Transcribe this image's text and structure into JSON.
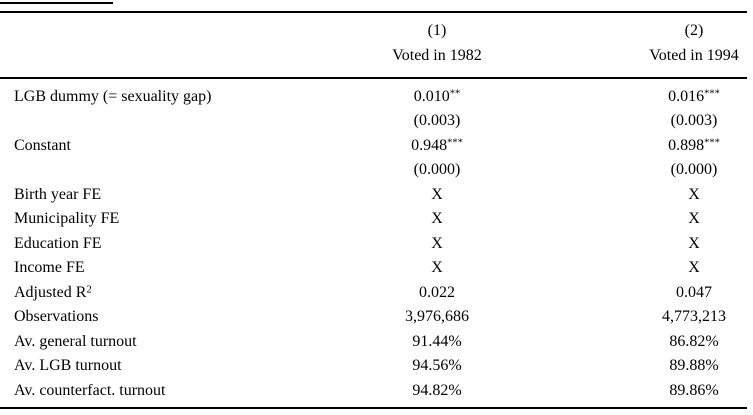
{
  "table": {
    "kind": "regression-results-table",
    "text_color": "#000000",
    "background_color": "#ffffff",
    "header": {
      "col1_num": "(1)",
      "col1_title": "Voted in 1982",
      "col2_num": "(2)",
      "col2_title": "Voted in 1994"
    },
    "rows": [
      {
        "label": "LGB dummy (= sexuality gap)",
        "c1": "0.010",
        "c1_sup": "**",
        "c2": "0.016",
        "c2_sup": "***"
      },
      {
        "label": "",
        "c1": "(0.003)",
        "c2": "(0.003)"
      },
      {
        "label": "Constant",
        "c1": "0.948",
        "c1_sup": "***",
        "c2": "0.898",
        "c2_sup": "***"
      },
      {
        "label": "",
        "c1": "(0.000)",
        "c2": "(0.000)"
      },
      {
        "label": "Birth year FE",
        "c1": "X",
        "c2": "X"
      },
      {
        "label": "Municipality FE",
        "c1": "X",
        "c2": "X"
      },
      {
        "label": "Education FE",
        "c1": "X",
        "c2": "X"
      },
      {
        "label": "Income FE",
        "c1": "X",
        "c2": "X"
      },
      {
        "label": "Adjusted R",
        "label_sup": "2",
        "c1": "0.022",
        "c2": "0.047"
      },
      {
        "label": "Observations",
        "c1": "3,976,686",
        "c2": "4,773,213"
      },
      {
        "label": "Av. general turnout",
        "c1": "91.44%",
        "c2": "86.82%"
      },
      {
        "label": "Av. LGB turnout",
        "c1": "94.56%",
        "c2": "89.88%"
      },
      {
        "label": "Av. counterfact. turnout",
        "c1": "94.82%",
        "c2": "89.86%"
      }
    ]
  }
}
